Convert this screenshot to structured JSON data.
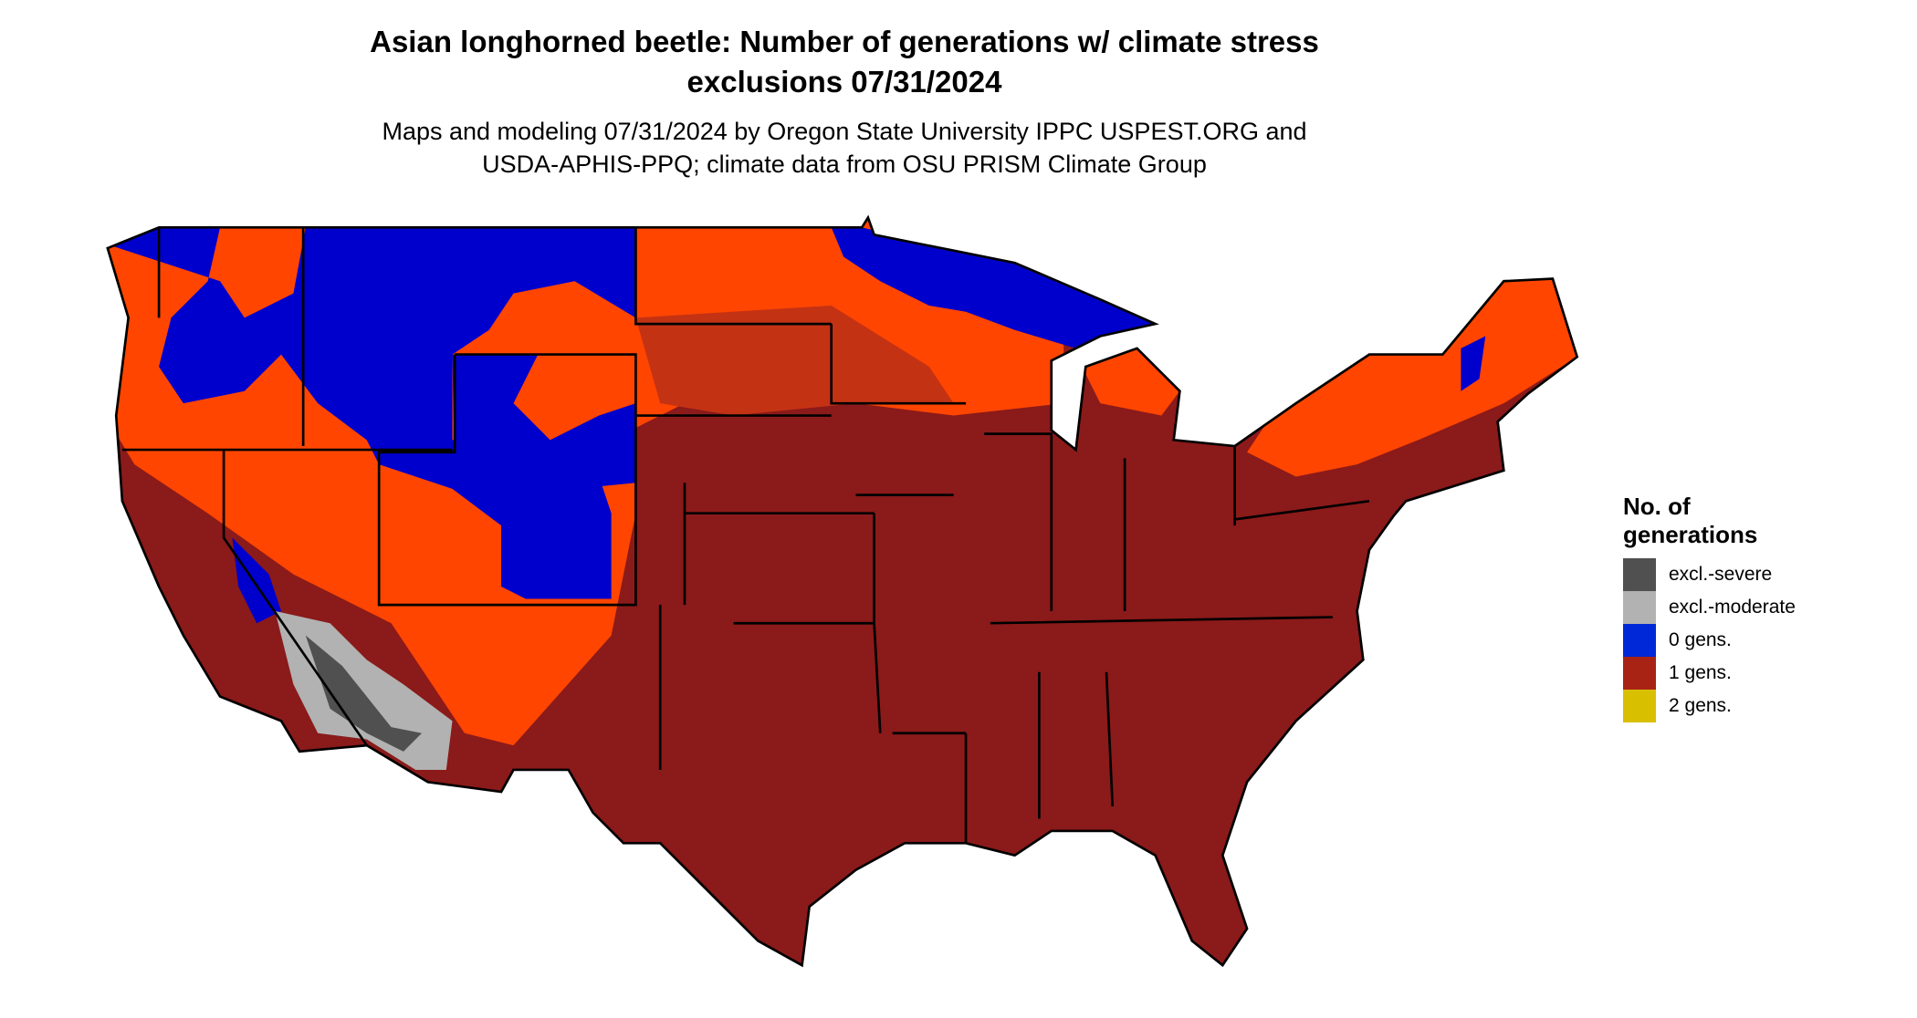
{
  "title": {
    "line1": "Asian longhorned beetle: Number of generations w/ climate stress",
    "line2": "exclusions 07/31/2024"
  },
  "subtitle": {
    "line1": "Maps and modeling 07/31/2024 by Oregon State University IPPC USPEST.ORG and",
    "line2": "USDA-APHIS-PPQ; climate data from OSU PRISM Climate Group"
  },
  "legend": {
    "title_line1": "No. of",
    "title_line2": "generations",
    "items": [
      {
        "label": "excl.-severe",
        "color": "#505050"
      },
      {
        "label": "excl.-moderate",
        "color": "#b2b2b2"
      },
      {
        "label": "0 gens.",
        "color": "#0028d8"
      },
      {
        "label": "1 gens.",
        "color": "#a82314"
      },
      {
        "label": "2 gens.",
        "color": "#d8c000"
      }
    ]
  },
  "map_colors": {
    "one_gen_dark": "#8b1a1a",
    "one_gen_bright": "#ff4500",
    "zero_gen": "#0000cc"
  }
}
